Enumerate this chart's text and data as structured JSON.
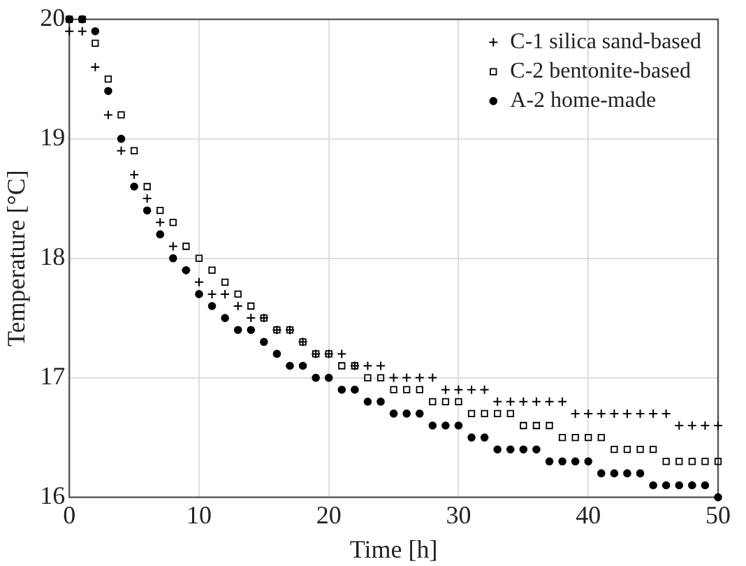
{
  "chart_data": {
    "type": "scatter",
    "xlabel": "Time [h]",
    "ylabel": "Temperature [°C]",
    "x": [
      0,
      1,
      2,
      3,
      4,
      5,
      6,
      7,
      8,
      9,
      10,
      11,
      12,
      13,
      14,
      15,
      16,
      17,
      18,
      19,
      20,
      21,
      22,
      23,
      24,
      25,
      26,
      27,
      28,
      29,
      30,
      31,
      32,
      33,
      34,
      35,
      36,
      37,
      38,
      39,
      40,
      41,
      42,
      43,
      44,
      45,
      46,
      47,
      48,
      49,
      50
    ],
    "series": [
      {
        "name": "C-1 silica sand-based",
        "color": "#000000",
        "marker": "cross",
        "values": [
          19.9,
          19.9,
          19.6,
          19.2,
          18.9,
          18.7,
          18.5,
          18.3,
          18.1,
          17.9,
          17.8,
          17.7,
          17.7,
          17.6,
          17.5,
          17.5,
          17.4,
          17.4,
          17.3,
          17.2,
          17.2,
          17.2,
          17.1,
          17.1,
          17.1,
          17.0,
          17.0,
          17.0,
          17.0,
          16.9,
          16.9,
          16.9,
          16.9,
          16.8,
          16.8,
          16.8,
          16.8,
          16.8,
          16.8,
          16.7,
          16.7,
          16.7,
          16.7,
          16.7,
          16.7,
          16.7,
          16.7,
          16.6,
          16.6,
          16.6,
          16.6
        ]
      },
      {
        "name": "C-2 bentonite-based",
        "color": "#000000",
        "marker": "square",
        "values": [
          20.0,
          20.0,
          19.8,
          19.5,
          19.2,
          18.9,
          18.6,
          18.4,
          18.3,
          18.1,
          18.0,
          17.9,
          17.8,
          17.7,
          17.6,
          17.5,
          17.4,
          17.4,
          17.3,
          17.2,
          17.2,
          17.1,
          17.1,
          17.0,
          17.0,
          16.9,
          16.9,
          16.9,
          16.8,
          16.8,
          16.8,
          16.7,
          16.7,
          16.7,
          16.7,
          16.6,
          16.6,
          16.6,
          16.5,
          16.5,
          16.5,
          16.5,
          16.4,
          16.4,
          16.4,
          16.4,
          16.3,
          16.3,
          16.3,
          16.3,
          16.3
        ]
      },
      {
        "name": "A-2 home-made",
        "color": "#000000",
        "marker": "circle",
        "values": [
          20.0,
          20.0,
          19.9,
          19.4,
          19.0,
          18.6,
          18.4,
          18.2,
          18.0,
          17.9,
          17.7,
          17.6,
          17.5,
          17.4,
          17.4,
          17.3,
          17.2,
          17.1,
          17.1,
          17.0,
          17.0,
          16.9,
          16.9,
          16.8,
          16.8,
          16.7,
          16.7,
          16.7,
          16.6,
          16.6,
          16.6,
          16.5,
          16.5,
          16.4,
          16.4,
          16.4,
          16.4,
          16.3,
          16.3,
          16.3,
          16.3,
          16.2,
          16.2,
          16.2,
          16.2,
          16.1,
          16.1,
          16.1,
          16.1,
          16.1,
          16.0
        ]
      }
    ],
    "xlim": [
      0,
      50
    ],
    "xticks": [
      0,
      10,
      20,
      30,
      40,
      50
    ],
    "ylim": [
      16,
      20
    ],
    "yticks": [
      16,
      17,
      18,
      19,
      20
    ],
    "grid": true,
    "legend": "top right"
  }
}
